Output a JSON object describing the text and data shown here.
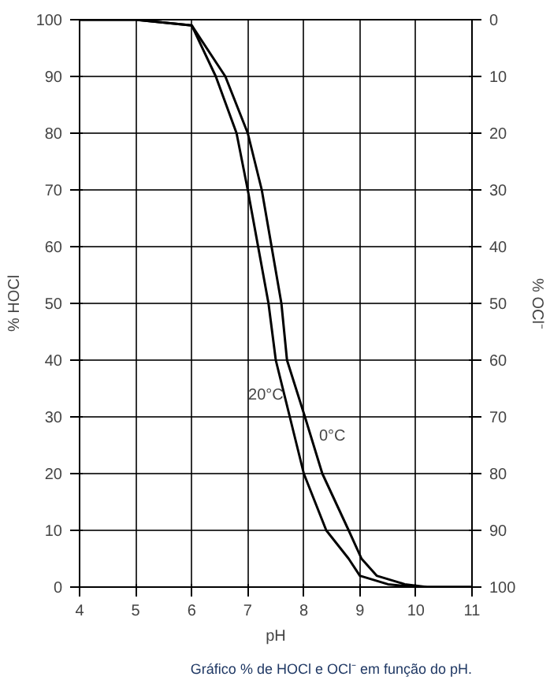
{
  "chart_data": {
    "type": "line",
    "xlabel": "pH",
    "ylabel": "% HOCl",
    "y2label": "% OCl⁻",
    "xlim": [
      4,
      11
    ],
    "xticks": [
      4,
      5,
      6,
      7,
      8,
      9,
      10,
      11
    ],
    "ylim": [
      0,
      100
    ],
    "yticks": [
      0,
      10,
      20,
      30,
      40,
      50,
      60,
      70,
      80,
      90,
      100
    ],
    "y2lim": [
      100,
      0
    ],
    "y2ticks": [
      0,
      10,
      20,
      30,
      40,
      50,
      60,
      70,
      80,
      90,
      100
    ],
    "grid": true,
    "legend": false,
    "marker": "none",
    "line_style": "solid",
    "annotations": [
      "Gráfico % de HOCl e OCl⁻ em função do pH."
    ],
    "series": [
      {
        "name": "20°C",
        "color": "#000000",
        "x": [
          4,
          5,
          6,
          6.43,
          6.8,
          7.0,
          7.37,
          7.5,
          7.75,
          8.0,
          8.4,
          8.8,
          9.0,
          9.5,
          10,
          11
        ],
        "values": [
          100,
          100,
          99,
          90,
          80,
          70,
          50,
          40,
          30,
          20,
          10,
          5,
          2,
          0.5,
          0,
          0
        ]
      },
      {
        "name": "0°C",
        "color": "#000000",
        "x": [
          4,
          5,
          6,
          6.6,
          7.0,
          7.25,
          7.6,
          7.7,
          8.02,
          8.33,
          8.8,
          9.03,
          9.3,
          9.8,
          10.2,
          11
        ],
        "values": [
          100,
          100,
          99,
          90,
          80,
          70,
          50,
          40,
          30,
          20,
          10,
          5,
          2,
          0.5,
          0,
          0
        ]
      }
    ]
  }
}
